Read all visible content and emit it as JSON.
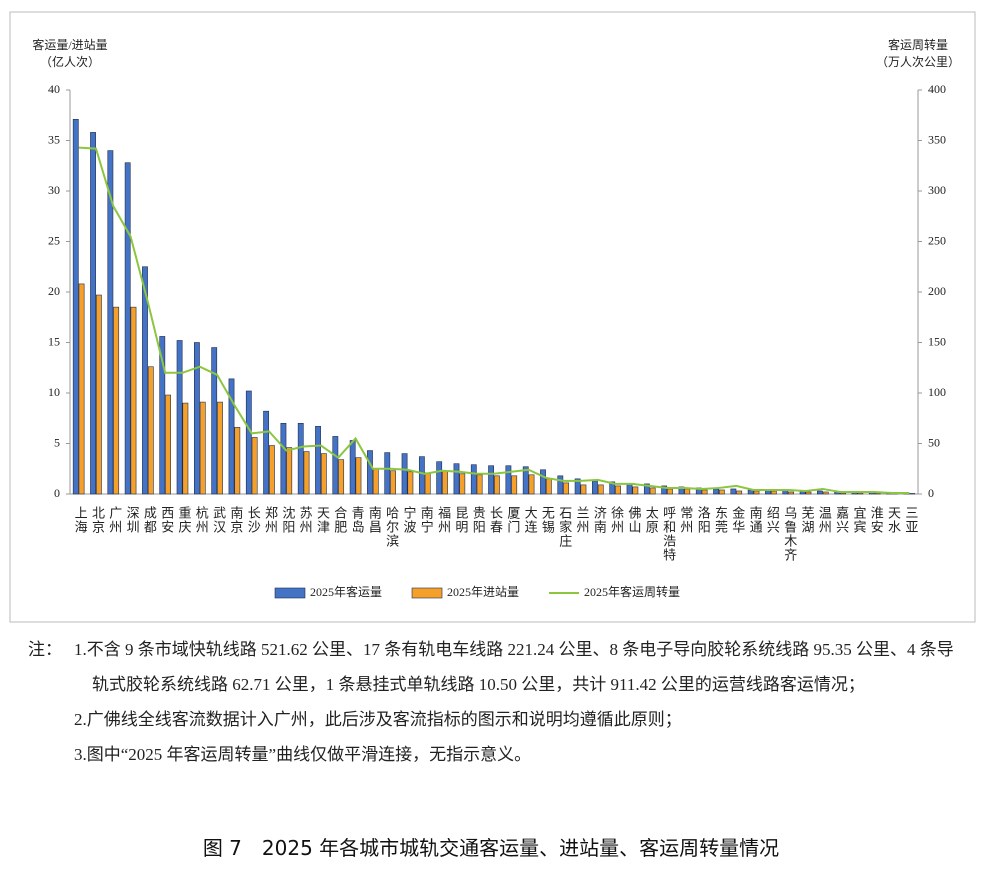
{
  "chart_data": {
    "type": "bar",
    "y_label": [
      "客运量/进站量",
      "（亿人次）"
    ],
    "y2_label": [
      "客运周转量",
      "（万人次公里）"
    ],
    "categories": [
      "上海",
      "北京",
      "广州",
      "深圳",
      "成都",
      "西安",
      "重庆",
      "杭州",
      "武汉",
      "南京",
      "长沙",
      "郑州",
      "沈阳",
      "苏州",
      "天津",
      "合肥",
      "青岛",
      "南昌",
      "哈尔滨",
      "宁波",
      "南宁",
      "福州",
      "昆明",
      "贵阳",
      "长春",
      "厦门",
      "大连",
      "无锡",
      "石家庄",
      "兰州",
      "济南",
      "徐州",
      "佛山",
      "太原",
      "呼和浩特",
      "常州",
      "洛阳",
      "东莞",
      "金华",
      "南通",
      "绍兴",
      "乌鲁木齐",
      "芜湖",
      "温州",
      "嘉兴",
      "宜宾",
      "淮安",
      "天水",
      "三亚"
    ],
    "series": [
      {
        "name": "2025年客运量",
        "color": "#4472c4",
        "values": [
          37.1,
          35.8,
          34.0,
          32.8,
          22.5,
          15.6,
          15.2,
          15.0,
          14.5,
          11.4,
          10.2,
          8.2,
          7.0,
          7.0,
          6.7,
          5.7,
          5.3,
          4.3,
          4.1,
          4.0,
          3.7,
          3.2,
          3.0,
          2.9,
          2.8,
          2.8,
          2.7,
          2.4,
          1.8,
          1.5,
          1.3,
          1.2,
          1.0,
          1.0,
          0.8,
          0.7,
          0.6,
          0.5,
          0.5,
          0.4,
          0.4,
          0.35,
          0.3,
          0.3,
          0.2,
          0.15,
          0.15,
          0.1,
          0.1
        ]
      },
      {
        "name": "2025年进站量",
        "color": "#f5a02a",
        "values": [
          20.8,
          19.7,
          18.5,
          18.5,
          12.6,
          9.8,
          9.0,
          9.1,
          9.1,
          6.6,
          5.6,
          4.8,
          4.6,
          4.2,
          4.0,
          3.4,
          3.6,
          2.5,
          2.3,
          2.2,
          2.1,
          2.3,
          2.0,
          1.9,
          1.8,
          1.8,
          1.9,
          1.5,
          1.1,
          0.9,
          0.9,
          0.8,
          0.7,
          0.6,
          0.5,
          0.5,
          0.4,
          0.4,
          0.3,
          0.3,
          0.3,
          0.2,
          0.2,
          0.2,
          0.1,
          0.1,
          0.1,
          0.1,
          0.05
        ]
      },
      {
        "name": "2025年客运周转量",
        "color": "#8cc63f",
        "type": "line",
        "axis": "y2",
        "values": [
          343,
          342,
          285,
          255,
          190,
          120,
          120,
          126,
          118,
          88,
          60,
          62,
          43,
          47,
          48,
          36,
          55,
          25,
          25,
          24,
          20,
          23,
          22,
          20,
          20,
          22,
          24,
          16,
          13,
          13,
          14,
          10,
          10,
          8,
          6,
          6,
          5,
          6,
          8,
          4,
          4,
          4,
          3,
          5,
          2,
          2,
          2,
          1,
          1
        ]
      }
    ],
    "ylim": [
      0,
      40
    ],
    "yticks": [
      0,
      5,
      10,
      15,
      20,
      25,
      30,
      35,
      40
    ],
    "y2lim": [
      0,
      400
    ],
    "y2ticks": [
      0,
      50,
      100,
      150,
      200,
      250,
      300,
      350,
      400
    ]
  },
  "notes": {
    "label": "注：",
    "items": [
      "1.不含 9 条市域快轨线路 521.62 公里、17 条有轨电车线路 221.24 公里、8 条电子导向胶轮系统线路 95.35 公里、4 条导轨式胶轮系统线路 62.71 公里，1 条悬挂式单轨线路 10.50 公里，共计 911.42 公里的运营线路客运情况；",
      "2.广佛线全线客流数据计入广州，此后涉及客流指标的图示和说明均遵循此原则；",
      "3.图中“2025 年客运周转量”曲线仅做平滑连接，无指示意义。"
    ]
  },
  "caption": "图 7　2025 年各城市城轨交通客运量、进站量、客运周转量情况"
}
